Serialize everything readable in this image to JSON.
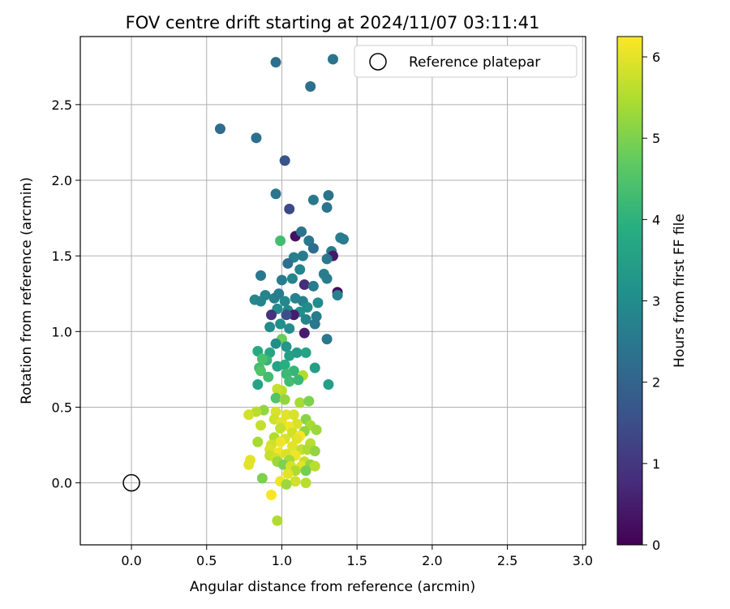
{
  "chart_data": {
    "type": "scatter",
    "title": "FOV centre drift starting at 2024/11/07 03:11:41",
    "xlabel": "Angular distance from reference (arcmin)",
    "ylabel": "Rotation from reference (arcmin)",
    "xlim": [
      -0.34,
      3.02
    ],
    "ylim": [
      -0.41,
      2.95
    ],
    "xticks": [
      "0.0",
      "0.5",
      "1.0",
      "1.5",
      "2.0",
      "2.5",
      "3.0"
    ],
    "yticks": [
      "0.0",
      "0.5",
      "1.0",
      "1.5",
      "2.0",
      "2.5"
    ],
    "grid": true,
    "legend": {
      "label": "Reference platepar",
      "placement": "top-right"
    },
    "reference_point": {
      "x": 0.0,
      "y": 0.0
    },
    "colorbar": {
      "label": "Hours from first FF file",
      "range": [
        0,
        6.25
      ],
      "ticks": [
        "0",
        "1",
        "2",
        "3",
        "4",
        "5",
        "6"
      ],
      "colormap": "viridis"
    },
    "points": [
      [
        0.96,
        2.78,
        2.3
      ],
      [
        1.34,
        2.8,
        2.4
      ],
      [
        1.19,
        2.62,
        2.3
      ],
      [
        0.59,
        2.34,
        2.2
      ],
      [
        0.83,
        2.28,
        2.3
      ],
      [
        1.02,
        2.13,
        1.6
      ],
      [
        0.96,
        1.91,
        2.4
      ],
      [
        1.21,
        1.87,
        2.5
      ],
      [
        1.31,
        1.9,
        2.4
      ],
      [
        1.05,
        1.81,
        1.4
      ],
      [
        1.3,
        1.82,
        2.4
      ],
      [
        0.99,
        1.6,
        4.3
      ],
      [
        1.09,
        1.63,
        0.3
      ],
      [
        1.39,
        1.62,
        2.6
      ],
      [
        1.41,
        1.61,
        2.6
      ],
      [
        1.18,
        1.6,
        2.5
      ],
      [
        1.13,
        1.66,
        2.4
      ],
      [
        1.21,
        1.55,
        2.2
      ],
      [
        1.33,
        1.53,
        2.6
      ],
      [
        1.34,
        1.5,
        0.4
      ],
      [
        1.3,
        1.48,
        2.5
      ],
      [
        1.14,
        1.5,
        2.6
      ],
      [
        1.08,
        1.49,
        2.7
      ],
      [
        1.04,
        1.45,
        2.3
      ],
      [
        1.12,
        1.41,
        2.8
      ],
      [
        0.86,
        1.37,
        2.5
      ],
      [
        1.0,
        1.34,
        2.6
      ],
      [
        1.07,
        1.35,
        2.8
      ],
      [
        1.15,
        1.31,
        0.8
      ],
      [
        1.21,
        1.3,
        2.6
      ],
      [
        1.28,
        1.38,
        2.6
      ],
      [
        1.3,
        1.35,
        2.6
      ],
      [
        1.37,
        1.26,
        0.2
      ],
      [
        1.37,
        1.24,
        2.7
      ],
      [
        0.89,
        1.24,
        2.8
      ],
      [
        0.95,
        1.22,
        2.7
      ],
      [
        0.98,
        1.25,
        2.6
      ],
      [
        1.02,
        1.2,
        2.9
      ],
      [
        1.09,
        1.22,
        2.8
      ],
      [
        1.14,
        1.2,
        2.7
      ],
      [
        0.82,
        1.21,
        2.9
      ],
      [
        0.86,
        1.2,
        2.8
      ],
      [
        0.97,
        1.15,
        3.0
      ],
      [
        1.04,
        1.14,
        2.9
      ],
      [
        1.12,
        1.13,
        3.1
      ],
      [
        1.17,
        1.16,
        3.0
      ],
      [
        1.24,
        1.19,
        3.0
      ],
      [
        1.08,
        1.11,
        0.5
      ],
      [
        1.03,
        1.11,
        1.5
      ],
      [
        0.93,
        1.11,
        0.9
      ],
      [
        1.23,
        1.1,
        2.6
      ],
      [
        1.16,
        1.08,
        2.8
      ],
      [
        1.22,
        1.05,
        2.5
      ],
      [
        0.92,
        1.03,
        3.0
      ],
      [
        0.99,
        1.05,
        3.1
      ],
      [
        1.05,
        1.02,
        3.0
      ],
      [
        1.15,
        0.99,
        0.5
      ],
      [
        1.3,
        0.95,
        2.5
      ],
      [
        1.0,
        0.95,
        4.8
      ],
      [
        0.96,
        0.92,
        3.0
      ],
      [
        1.03,
        0.9,
        3.3
      ],
      [
        1.1,
        0.86,
        3.4
      ],
      [
        0.92,
        0.86,
        3.7
      ],
      [
        0.84,
        0.87,
        3.8
      ],
      [
        0.9,
        0.81,
        4.1
      ],
      [
        0.87,
        0.82,
        4.4
      ],
      [
        1.16,
        0.86,
        3.6
      ],
      [
        1.05,
        0.84,
        3.5
      ],
      [
        0.97,
        0.77,
        3.6
      ],
      [
        1.02,
        0.78,
        3.9
      ],
      [
        1.22,
        0.76,
        3.5
      ],
      [
        0.85,
        0.76,
        4.3
      ],
      [
        0.86,
        0.74,
        4.5
      ],
      [
        0.91,
        0.7,
        4.3
      ],
      [
        1.08,
        0.74,
        4.1
      ],
      [
        1.03,
        0.72,
        4.2
      ],
      [
        1.14,
        0.71,
        5.5
      ],
      [
        1.05,
        0.67,
        4.3
      ],
      [
        1.11,
        0.68,
        4.2
      ],
      [
        0.84,
        0.65,
        3.6
      ],
      [
        1.31,
        0.65,
        3.5
      ],
      [
        1.0,
        0.61,
        5.6
      ],
      [
        0.97,
        0.62,
        5.7
      ],
      [
        0.96,
        0.56,
        4.5
      ],
      [
        1.02,
        0.55,
        5.2
      ],
      [
        1.12,
        0.53,
        5.4
      ],
      [
        1.18,
        0.54,
        5.0
      ],
      [
        0.88,
        0.48,
        5.2
      ],
      [
        0.83,
        0.47,
        5.6
      ],
      [
        0.78,
        0.45,
        5.8
      ],
      [
        0.96,
        0.47,
        5.9
      ],
      [
        1.03,
        0.45,
        6.0
      ],
      [
        1.08,
        0.45,
        5.9
      ],
      [
        1.16,
        0.42,
        5.1
      ],
      [
        0.95,
        0.42,
        5.8
      ],
      [
        1.0,
        0.4,
        6.0
      ],
      [
        1.1,
        0.39,
        5.9
      ],
      [
        1.19,
        0.38,
        5.4
      ],
      [
        1.05,
        0.37,
        6.1
      ],
      [
        0.99,
        0.36,
        5.7
      ],
      [
        0.86,
        0.38,
        5.7
      ],
      [
        1.23,
        0.35,
        5.3
      ],
      [
        1.15,
        0.34,
        5.2
      ],
      [
        1.07,
        0.33,
        5.8
      ],
      [
        1.12,
        0.31,
        6.2
      ],
      [
        0.95,
        0.3,
        5.5
      ],
      [
        1.02,
        0.29,
        5.9
      ],
      [
        1.1,
        0.29,
        6.0
      ],
      [
        0.99,
        0.27,
        6.1
      ],
      [
        1.19,
        0.26,
        5.6
      ],
      [
        0.84,
        0.27,
        5.4
      ],
      [
        0.93,
        0.25,
        5.8
      ],
      [
        1.07,
        0.24,
        6.0
      ],
      [
        1.13,
        0.22,
        5.7
      ],
      [
        1.17,
        0.22,
        5.5
      ],
      [
        1.22,
        0.21,
        5.2
      ],
      [
        0.92,
        0.22,
        5.9
      ],
      [
        0.98,
        0.2,
        6.1
      ],
      [
        1.03,
        0.19,
        5.9
      ],
      [
        1.09,
        0.18,
        6.1
      ],
      [
        0.92,
        0.18,
        5.7
      ],
      [
        0.96,
        0.16,
        5.8
      ],
      [
        1.05,
        0.15,
        5.4
      ],
      [
        1.15,
        0.14,
        5.7
      ],
      [
        1.13,
        0.11,
        6.0
      ],
      [
        0.97,
        0.14,
        5.3
      ],
      [
        1.01,
        0.12,
        5.0
      ],
      [
        1.06,
        0.11,
        5.9
      ],
      [
        1.19,
        0.12,
        5.2
      ],
      [
        1.22,
        0.11,
        5.6
      ],
      [
        0.79,
        0.15,
        6.0
      ],
      [
        0.78,
        0.12,
        6.0
      ],
      [
        1.09,
        0.08,
        5.5
      ],
      [
        1.16,
        0.08,
        4.9
      ],
      [
        1.04,
        0.06,
        6.0
      ],
      [
        0.87,
        0.03,
        5.0
      ],
      [
        0.99,
        0.01,
        6.1
      ],
      [
        1.09,
        0.01,
        5.8
      ],
      [
        1.03,
        -0.01,
        5.3
      ],
      [
        1.16,
        0.0,
        5.6
      ],
      [
        0.93,
        -0.08,
        6.2
      ],
      [
        0.97,
        -0.25,
        5.5
      ]
    ]
  }
}
